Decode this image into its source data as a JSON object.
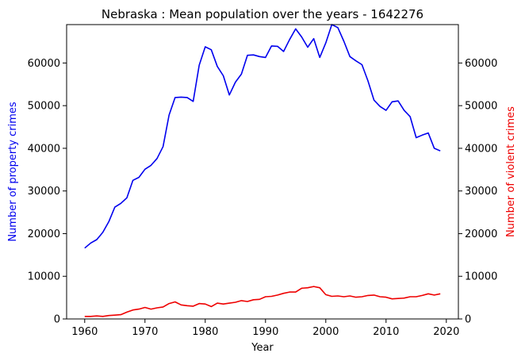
{
  "chart_data": {
    "type": "line",
    "title": "Nebraska : Mean population over the years - 1642276",
    "xlabel": "Year",
    "ylabel_left": "Number of property crimes",
    "ylabel_right": "Number of violent crimes",
    "xlim": [
      1957,
      2022
    ],
    "ylim": [
      0,
      69000
    ],
    "xticks": [
      "1960",
      "1970",
      "1980",
      "1990",
      "2000",
      "2010",
      "2020"
    ],
    "yticks": [
      "0",
      "10000",
      "20000",
      "30000",
      "40000",
      "50000",
      "60000"
    ],
    "grid": false,
    "x": [
      1960,
      1961,
      1962,
      1963,
      1964,
      1965,
      1966,
      1967,
      1968,
      1969,
      1970,
      1971,
      1972,
      1973,
      1974,
      1975,
      1976,
      1977,
      1978,
      1979,
      1980,
      1981,
      1982,
      1983,
      1984,
      1985,
      1986,
      1987,
      1988,
      1989,
      1990,
      1991,
      1992,
      1993,
      1994,
      1995,
      1996,
      1997,
      1998,
      1999,
      2000,
      2001,
      2002,
      2003,
      2004,
      2005,
      2006,
      2007,
      2008,
      2009,
      2010,
      2011,
      2012,
      2013,
      2014,
      2015,
      2016,
      2017,
      2018,
      2019
    ],
    "series": [
      {
        "axis": "left",
        "color": "#0000ee",
        "values": [
          16600,
          17800,
          18600,
          20300,
          22800,
          26200,
          27100,
          28400,
          32500,
          33200,
          35100,
          36000,
          37600,
          40400,
          47800,
          51900,
          52000,
          51900,
          51000,
          59500,
          63800,
          63100,
          59200,
          57000,
          52500,
          55500,
          57400,
          61800,
          61900,
          61500,
          61300,
          64000,
          63900,
          62700,
          65500,
          68000,
          66100,
          63700,
          65700,
          61300,
          64700,
          69000,
          68300,
          65100,
          61500,
          60500,
          59600,
          55800,
          51300,
          49800,
          48900,
          50900,
          51100,
          48900,
          47400,
          42500,
          43100,
          43600,
          40000,
          39400
        ]
      },
      {
        "axis": "right",
        "color": "#ee0000",
        "values": [
          600,
          600,
          700,
          600,
          800,
          900,
          1000,
          1600,
          2100,
          2300,
          2700,
          2300,
          2600,
          2800,
          3600,
          4000,
          3300,
          3100,
          3000,
          3600,
          3500,
          2900,
          3700,
          3500,
          3700,
          3900,
          4300,
          4100,
          4500,
          4600,
          5200,
          5300,
          5600,
          6000,
          6300,
          6300,
          7200,
          7300,
          7600,
          7300,
          5700,
          5300,
          5400,
          5200,
          5400,
          5100,
          5200,
          5500,
          5600,
          5200,
          5100,
          4700,
          4800,
          4900,
          5200,
          5200,
          5500,
          5900,
          5600,
          5900
        ]
      }
    ]
  }
}
